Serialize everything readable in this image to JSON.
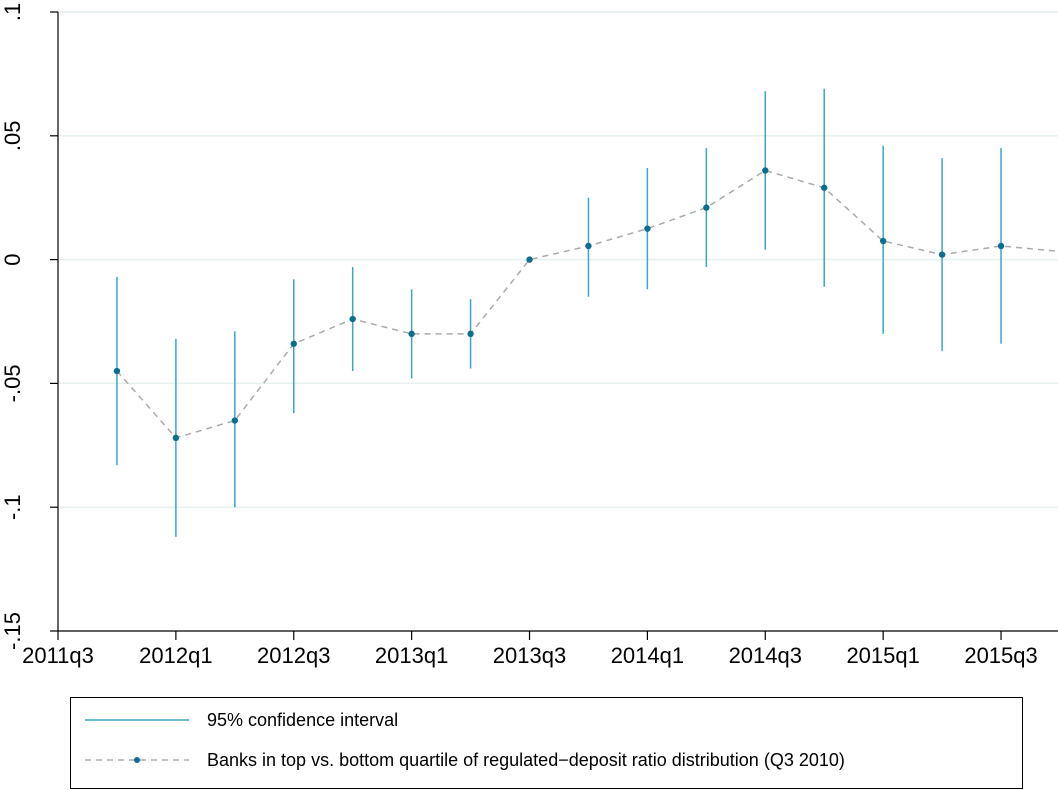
{
  "chart_data": {
    "type": "line",
    "title": "",
    "xlabel": "",
    "ylabel": "",
    "x_tick_labels": [
      "2011q3",
      "2012q1",
      "2012q3",
      "2013q1",
      "2013q3",
      "2014q1",
      "2014q3",
      "2015q1",
      "2015q3"
    ],
    "y_tick_labels": [
      "-.15",
      "-.1",
      "-.05",
      "0",
      ".05",
      ".1"
    ],
    "y_ticks": [
      -0.15,
      -0.1,
      -0.05,
      0,
      0.05,
      0.1
    ],
    "ylim": [
      -0.15,
      0.1
    ],
    "grid": true,
    "legend_position": "bottom",
    "colors": {
      "ci": "#3aa6c6",
      "point": "#0a6f8f",
      "line": "#aaaaaa",
      "grid": "#e4efef"
    },
    "series": [
      {
        "name": "Banks in top vs. bottom quartile of regulated−deposit ratio distribution (Q3 2010)",
        "x": [
          "2011q4",
          "2012q1",
          "2012q2",
          "2012q3",
          "2012q4",
          "2013q1",
          "2013q2",
          "2013q3",
          "2013q4",
          "2014q1",
          "2014q2",
          "2014q3",
          "2014q4",
          "2015q1",
          "2015q2",
          "2015q3",
          "2015q4"
        ],
        "values": [
          -0.045,
          -0.072,
          -0.065,
          -0.034,
          -0.024,
          -0.03,
          -0.03,
          0.0,
          0.0055,
          0.0125,
          0.021,
          0.036,
          0.029,
          0.0075,
          0.002,
          0.0055,
          0.0033
        ]
      },
      {
        "name": "95% confidence interval",
        "x": [
          "2011q4",
          "2012q1",
          "2012q2",
          "2012q3",
          "2012q4",
          "2013q1",
          "2013q2",
          "2013q4",
          "2014q1",
          "2014q2",
          "2014q3",
          "2014q4",
          "2015q1",
          "2015q2",
          "2015q3"
        ],
        "lower": [
          -0.083,
          -0.112,
          -0.1,
          -0.062,
          -0.045,
          -0.048,
          -0.044,
          -0.015,
          -0.012,
          -0.003,
          0.004,
          -0.011,
          -0.03,
          -0.037,
          -0.034
        ],
        "upper": [
          -0.007,
          -0.032,
          -0.029,
          -0.008,
          -0.003,
          -0.012,
          -0.016,
          0.025,
          0.037,
          0.045,
          0.068,
          0.069,
          0.046,
          0.041,
          0.045
        ]
      }
    ]
  }
}
